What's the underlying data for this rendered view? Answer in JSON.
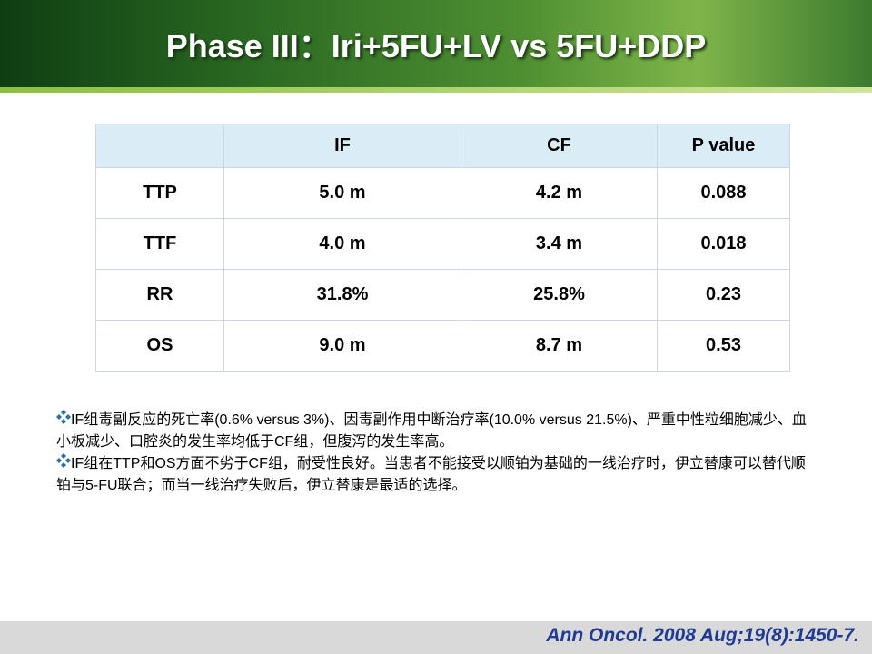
{
  "header": {
    "title": "Phase III：Iri+5FU+LV vs 5FU+DDP"
  },
  "table": {
    "columns": [
      "IF",
      "CF",
      "P value"
    ],
    "rows": [
      [
        "TTP",
        "5.0 m",
        "4.2 m",
        "0.088"
      ],
      [
        "TTF",
        "4.0 m",
        "3.4 m",
        "0.018"
      ],
      [
        "RR",
        "31.8%",
        "25.8%",
        "0.23"
      ],
      [
        "OS",
        "9.0 m",
        "8.7 m",
        "0.53"
      ]
    ]
  },
  "bullets": [
    "IF组毒副反应的死亡率(0.6% versus 3%)、因毒副作用中断治疗率(10.0% versus 21.5%)、严重中性粒细胞减少、血小板减少、口腔炎的发生率均低于CF组，但腹泻的发生率高。",
    "IF组在TTP和OS方面不劣于CF组，耐受性良好。当患者不能接受以顺铂为基础的一线治疗时，伊立替康可以替代顺铂与5-FU联合；而当一线治疗失败后，伊立替康是最适的选择。"
  ],
  "citation": "Ann Oncol. 2008 Aug;19(8):1450-7."
}
